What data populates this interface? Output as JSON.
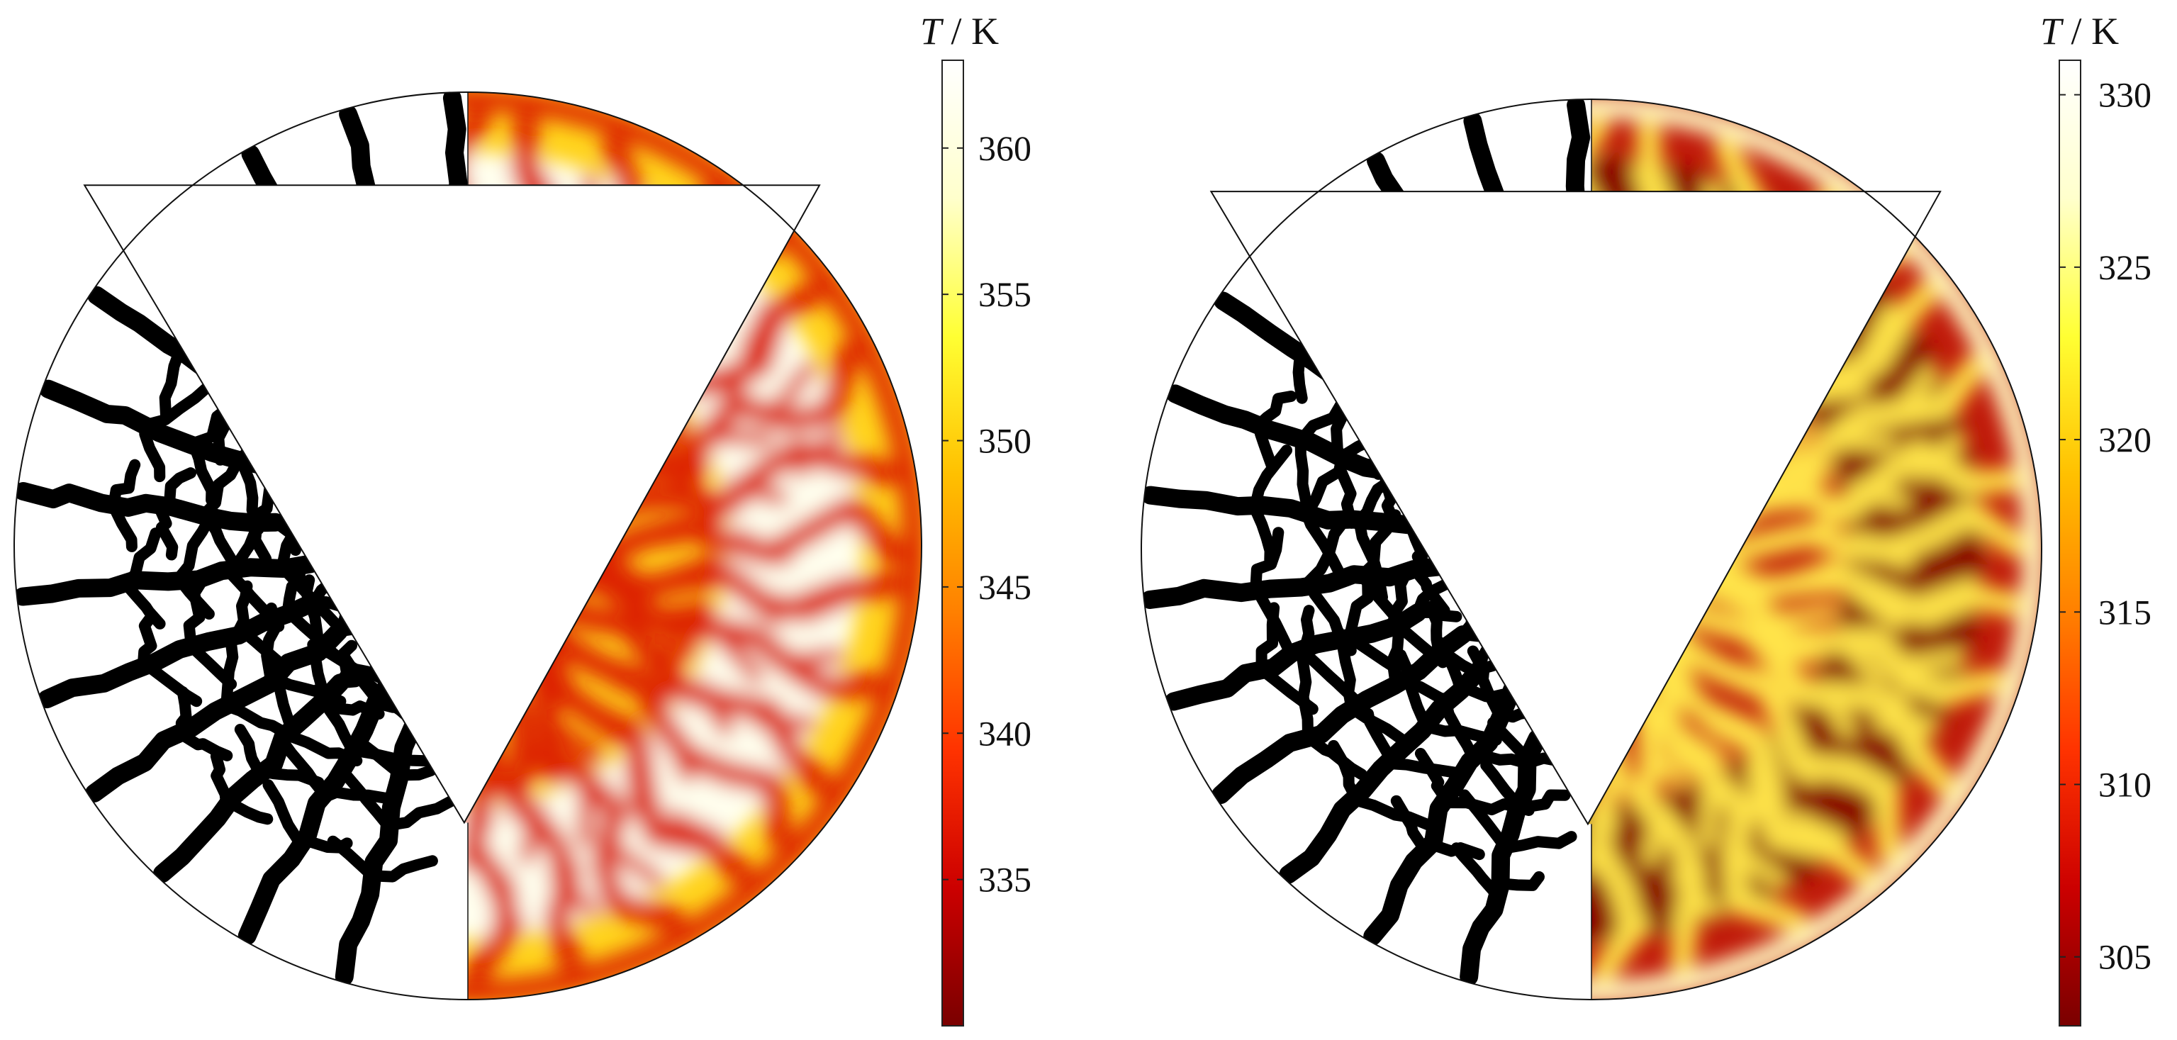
{
  "figure": {
    "panels": [
      {
        "id": "left",
        "colorbar": {
          "title_symbol": "T",
          "title_sep": " / ",
          "title_unit": "K",
          "min": 330,
          "max": 363,
          "ticks": [
            "335",
            "340",
            "345",
            "350",
            "355",
            "360"
          ],
          "colormap": [
            "#7a0000",
            "#cc0000",
            "#ff3300",
            "#ff8000",
            "#ffc000",
            "#ffff33",
            "#ffffcc",
            "#ffffff"
          ]
        },
        "field_colors": {
          "channel": "#dd2200",
          "mid": "#ffd21a",
          "hot": "#ffffee",
          "rim": "#e03000"
        }
      },
      {
        "id": "right",
        "colorbar": {
          "title_symbol": "T",
          "title_sep": " / ",
          "title_unit": "K",
          "min": 303,
          "max": 331,
          "ticks": [
            "305",
            "310",
            "315",
            "320",
            "325",
            "330"
          ],
          "colormap": [
            "#7a0000",
            "#cc0000",
            "#ff3300",
            "#ff8000",
            "#ffc000",
            "#ffff33",
            "#ffffcc",
            "#ffffff"
          ]
        },
        "field_colors": {
          "channel": "#ffe44a",
          "mid": "#c01808",
          "hot": "#8a0505",
          "rim": "#fff6c0"
        }
      }
    ]
  }
}
